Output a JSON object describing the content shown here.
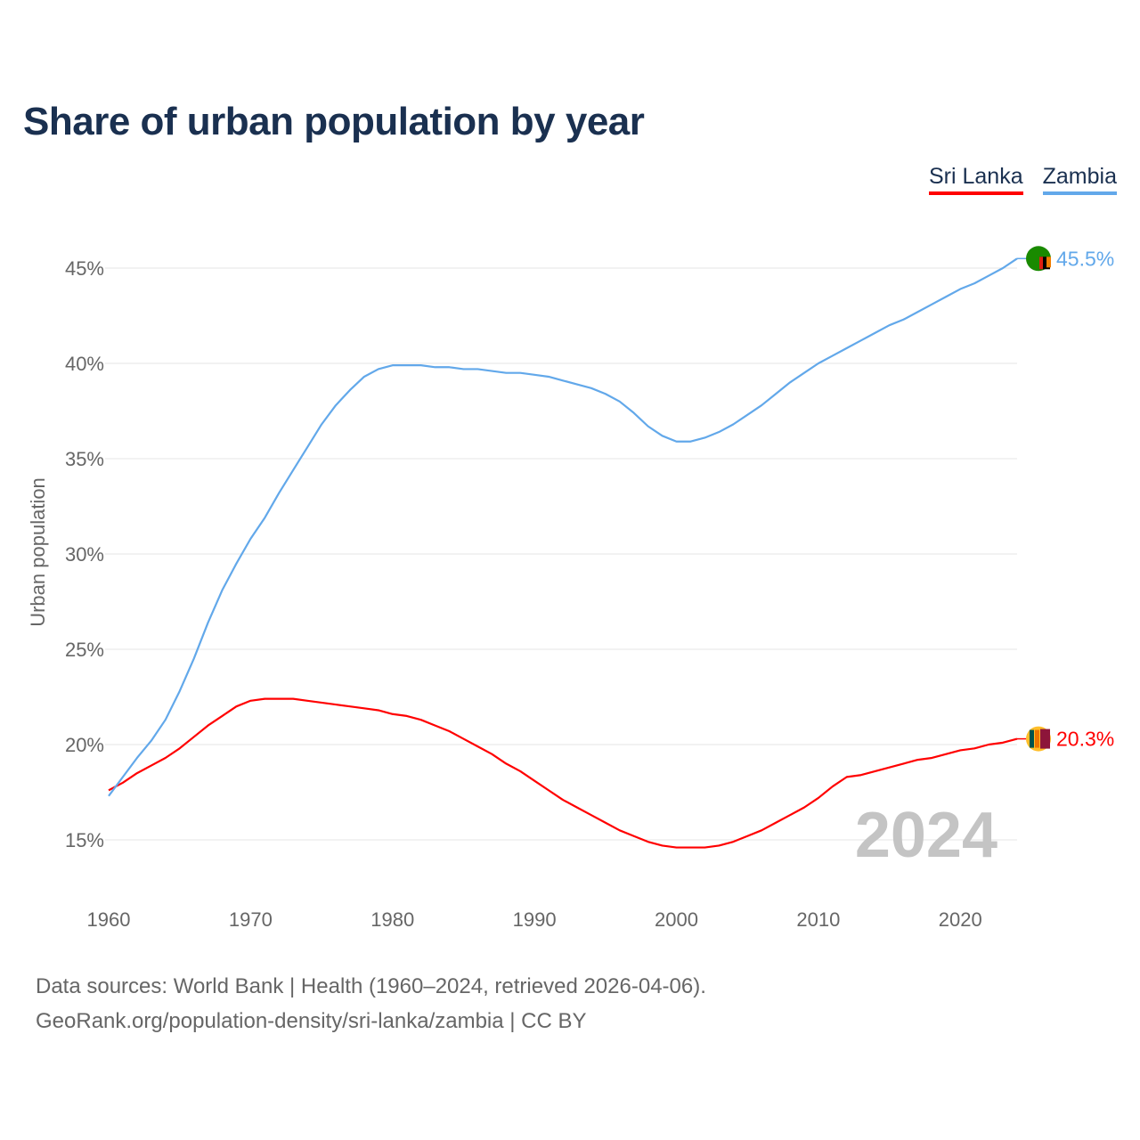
{
  "chart_data": {
    "type": "line",
    "title": "Share of urban population by year",
    "xlabel": "",
    "ylabel": "Urban population",
    "xlim": [
      1960,
      2024
    ],
    "ylim": [
      12.5,
      47.5
    ],
    "yticks": [
      15,
      20,
      25,
      30,
      35,
      40,
      45
    ],
    "ytick_labels": [
      "15%",
      "20%",
      "25%",
      "30%",
      "35%",
      "40%",
      "45%"
    ],
    "xticks": [
      1960,
      1970,
      1980,
      1990,
      2000,
      2010,
      2020
    ],
    "xtick_labels": [
      "1960",
      "1970",
      "1980",
      "1990",
      "2000",
      "2010",
      "2020"
    ],
    "grid": true,
    "legend_position": "top-right",
    "year_watermark": "2024",
    "x": [
      1960,
      1961,
      1962,
      1963,
      1964,
      1965,
      1966,
      1967,
      1968,
      1969,
      1970,
      1971,
      1972,
      1973,
      1974,
      1975,
      1976,
      1977,
      1978,
      1979,
      1980,
      1981,
      1982,
      1983,
      1984,
      1985,
      1986,
      1987,
      1988,
      1989,
      1990,
      1991,
      1992,
      1993,
      1994,
      1995,
      1996,
      1997,
      1998,
      1999,
      2000,
      2001,
      2002,
      2003,
      2004,
      2005,
      2006,
      2007,
      2008,
      2009,
      2010,
      2011,
      2012,
      2013,
      2014,
      2015,
      2016,
      2017,
      2018,
      2019,
      2020,
      2021,
      2022,
      2023,
      2024
    ],
    "series": [
      {
        "name": "Sri Lanka",
        "color": "#ff0000",
        "end_label": "20.3%",
        "values": [
          17.6,
          18.0,
          18.5,
          18.9,
          19.3,
          19.8,
          20.4,
          21.0,
          21.5,
          22.0,
          22.3,
          22.4,
          22.4,
          22.4,
          22.3,
          22.2,
          22.1,
          22.0,
          21.9,
          21.8,
          21.6,
          21.5,
          21.3,
          21.0,
          20.7,
          20.3,
          19.9,
          19.5,
          19.0,
          18.6,
          18.1,
          17.6,
          17.1,
          16.7,
          16.3,
          15.9,
          15.5,
          15.2,
          14.9,
          14.7,
          14.6,
          14.6,
          14.6,
          14.7,
          14.9,
          15.2,
          15.5,
          15.9,
          16.3,
          16.7,
          17.2,
          17.8,
          18.3,
          18.4,
          18.6,
          18.8,
          19.0,
          19.2,
          19.3,
          19.5,
          19.7,
          19.8,
          20.0,
          20.1,
          20.3
        ]
      },
      {
        "name": "Zambia",
        "color": "#62a8ea",
        "end_label": "45.5%",
        "values": [
          17.3,
          18.3,
          19.3,
          20.2,
          21.3,
          22.8,
          24.5,
          26.4,
          28.1,
          29.5,
          30.8,
          31.9,
          33.2,
          34.4,
          35.6,
          36.8,
          37.8,
          38.6,
          39.3,
          39.7,
          39.9,
          39.9,
          39.9,
          39.8,
          39.8,
          39.7,
          39.7,
          39.6,
          39.5,
          39.5,
          39.4,
          39.3,
          39.1,
          38.9,
          38.7,
          38.4,
          38.0,
          37.4,
          36.7,
          36.2,
          35.9,
          35.9,
          36.1,
          36.4,
          36.8,
          37.3,
          37.8,
          38.4,
          39.0,
          39.5,
          40.0,
          40.4,
          40.8,
          41.2,
          41.6,
          42.0,
          42.3,
          42.7,
          43.1,
          43.5,
          43.9,
          44.2,
          44.6,
          45.0,
          45.5
        ]
      }
    ]
  },
  "footer": {
    "line1": "Data sources: World Bank | Health (1960–2024, retrieved 2026-04-06).",
    "line2": "GeoRank.org/population-density/sri-lanka/zambia | CC BY"
  }
}
